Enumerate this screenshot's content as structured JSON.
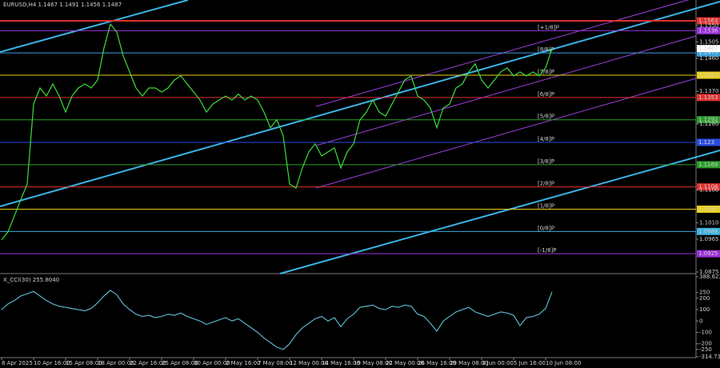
{
  "chart_data": [
    {
      "type": "line",
      "title": "EURUSD,H4 1.1467 1.1491 1.1456 1.1487",
      "x": [
        0,
        1,
        2,
        3,
        4,
        5,
        6,
        7,
        8,
        9,
        10,
        11,
        12,
        13,
        14,
        15,
        16,
        17,
        18,
        19,
        20,
        21,
        22,
        23,
        24,
        25,
        26,
        27,
        28,
        29,
        30,
        31,
        32,
        33,
        34,
        35,
        36,
        37,
        38,
        39,
        40,
        41,
        42,
        43,
        44,
        45,
        46,
        47,
        48,
        49,
        50,
        51,
        52,
        53,
        54,
        55,
        56,
        57,
        58,
        59,
        60,
        61,
        62,
        63,
        64,
        65,
        66,
        67,
        68,
        69,
        70,
        71,
        72,
        73,
        74,
        75,
        76,
        77,
        78,
        79,
        80,
        81,
        82,
        83,
        84,
        85,
        86
      ],
      "series": [
        {
          "color": "#3cdc3c",
          "values": [
            1.0963,
            1.0985,
            1.1029,
            1.1073,
            1.1116,
            1.1335,
            1.1379,
            1.1357,
            1.139,
            1.1357,
            1.1313,
            1.1357,
            1.1379,
            1.139,
            1.1379,
            1.1401,
            1.1489,
            1.1554,
            1.1532,
            1.1467,
            1.1423,
            1.1379,
            1.1357,
            1.1379,
            1.1379,
            1.1368,
            1.1379,
            1.1401,
            1.1412,
            1.139,
            1.1368,
            1.1346,
            1.1313,
            1.1335,
            1.1346,
            1.1357,
            1.1346,
            1.1362,
            1.1346,
            1.1357,
            1.1346,
            1.1313,
            1.127,
            1.1292,
            1.1248,
            1.1116,
            1.1105,
            1.116,
            1.1204,
            1.1226,
            1.1193,
            1.1204,
            1.1215,
            1.116,
            1.1204,
            1.1226,
            1.1292,
            1.1313,
            1.1346,
            1.1313,
            1.1302,
            1.1335,
            1.1368,
            1.1401,
            1.1412,
            1.1357,
            1.1346,
            1.1324,
            1.127,
            1.1324,
            1.1335,
            1.1379,
            1.139,
            1.1423,
            1.1445,
            1.1401,
            1.1379,
            1.1401,
            1.1423,
            1.1434,
            1.1412,
            1.1423,
            1.1412,
            1.1423,
            1.1412,
            1.1434,
            1.1487
          ]
        }
      ],
      "xlim": [
        -0.25,
        108.5
      ],
      "xticks": [
        {
          "value": 0,
          "label": "8 Apr 2025"
        },
        {
          "value": 5,
          "label": "10 Apr 16:00"
        },
        {
          "value": 10,
          "label": "15 Apr 08:00"
        },
        {
          "value": 15,
          "label": "18 Apr 00:00"
        },
        {
          "value": 20,
          "label": "22 Apr 16:00"
        },
        {
          "value": 25,
          "label": "25 Apr 08:00"
        },
        {
          "value": 30,
          "label": "30 Apr 00:00"
        },
        {
          "value": 35,
          "label": "2 May 16:00"
        },
        {
          "value": 40,
          "label": "7 May 08:00"
        },
        {
          "value": 45,
          "label": "12 May 00:00"
        },
        {
          "value": 50,
          "label": "14 May 16:00"
        },
        {
          "value": 55,
          "label": "19 May 08:00"
        },
        {
          "value": 60,
          "label": "22 May 00:00"
        },
        {
          "value": 65,
          "label": "26 May 16:00"
        },
        {
          "value": 70,
          "label": "29 May 08:00"
        },
        {
          "value": 75,
          "label": "3 Jun 00:00"
        },
        {
          "value": 80,
          "label": "5 Jun 16:00"
        },
        {
          "value": 85,
          "label": "10 Jun 08:00"
        }
      ],
      "ylim": [
        1.0875,
        1.162
      ],
      "yticks": [
        {
          "value": 1.155,
          "label": "1.1550"
        },
        1.1505,
        {
          "value": 1.146,
          "label": "1.1460"
        },
        {
          "value": 1.137,
          "label": "1.1370"
        },
        {
          "value": 1.128,
          "label": "1.1280"
        },
        {
          "value": 1.11,
          "label": "1.1100"
        },
        {
          "value": 1.101,
          "label": "1.1010"
        },
        1.0965,
        1.0875
      ],
      "levels": [
        {
          "value": 1.1563,
          "color": "#e03030"
        },
        {
          "value": 1.1536,
          "tag": "[+1/8]P",
          "color": "#9b30d9"
        },
        {
          "value": 1.1475,
          "tag": "[8/8]P",
          "color": "#3aa0e0"
        },
        {
          "value": 1.1414,
          "tag": "[7/8]P",
          "color": "#e8d020"
        },
        {
          "value": 1.1353,
          "tag": "[6/8]P",
          "color": "#e03030"
        },
        {
          "value": 1.1292,
          "tag": "[5/8]P",
          "color": "#2a9d2a"
        },
        {
          "value": 1.123,
          "tag": "[4/8]P",
          "color": "#2a4de0"
        },
        {
          "value": 1.1169,
          "tag": "[3/8]P",
          "color": "#2a9d2a"
        },
        {
          "value": 1.1108,
          "tag": "[2/8]P",
          "color": "#e03030"
        },
        {
          "value": 1.1047,
          "tag": "[1/8]P",
          "color": "#e8d020"
        },
        {
          "value": 1.0986,
          "tag": "[0/8]P",
          "color": "#3ab0e0"
        },
        {
          "value": 1.0925,
          "tag": "[-1/8]P",
          "color": "#9b30d9"
        }
      ],
      "grid": false
    },
    {
      "type": "line",
      "title": "X_CCI(30) 255.8040",
      "series": [
        {
          "color": "#5ab4c8",
          "values": [
            100,
            150,
            180,
            220,
            240,
            260,
            220,
            180,
            150,
            130,
            120,
            110,
            100,
            90,
            110,
            160,
            220,
            270,
            230,
            150,
            100,
            60,
            40,
            50,
            30,
            40,
            60,
            50,
            70,
            40,
            20,
            0,
            -30,
            -10,
            10,
            30,
            0,
            20,
            -20,
            -60,
            -100,
            -150,
            -190,
            -230,
            -250,
            -200,
            -120,
            -60,
            -20,
            20,
            40,
            0,
            30,
            -50,
            20,
            60,
            120,
            130,
            140,
            110,
            100,
            130,
            120,
            140,
            130,
            60,
            40,
            -20,
            -90,
            0,
            40,
            80,
            100,
            120,
            80,
            60,
            40,
            60,
            80,
            70,
            50,
            -40,
            30,
            40,
            60,
            110,
            255.804
          ]
        }
      ],
      "ylim": [
        -314.734,
        388.6237
      ],
      "yticks": [
        388.6237,
        250,
        200,
        100,
        0,
        -100,
        -200,
        -250,
        -314.734
      ],
      "grid": false
    }
  ]
}
